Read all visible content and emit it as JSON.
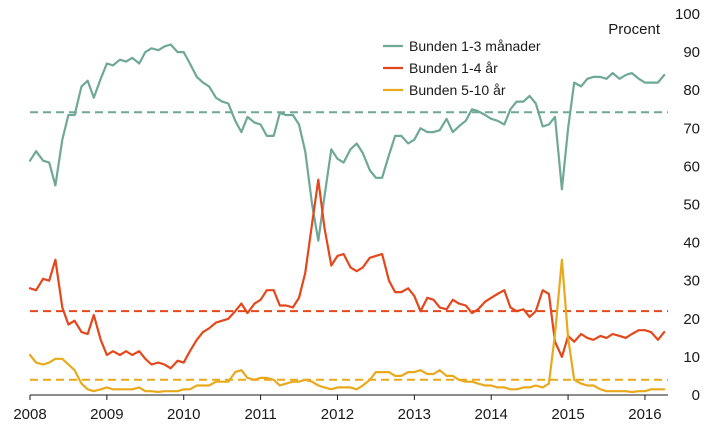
{
  "chart_data": {
    "type": "line",
    "title": "",
    "xlabel": "",
    "ylabel": "Procent",
    "xlim": [
      2008.0,
      2016.3
    ],
    "ylim": [
      0,
      100
    ],
    "x_ticks": [
      "2008",
      "2009",
      "2010",
      "2011",
      "2012",
      "2013",
      "2014",
      "2015",
      "2016"
    ],
    "y_ticks": [
      "0",
      "10",
      "20",
      "30",
      "40",
      "50",
      "60",
      "70",
      "80",
      "90",
      "100"
    ],
    "y_axis_position": "right",
    "grid": false,
    "legend_position": "top-center",
    "series": [
      {
        "name": "Bunden 1-3 månader",
        "color": "#6fa897",
        "mean": 74.2,
        "x": [
          2008.0,
          2008.08,
          2008.17,
          2008.25,
          2008.33,
          2008.42,
          2008.5,
          2008.58,
          2008.67,
          2008.75,
          2008.83,
          2008.92,
          2009.0,
          2009.08,
          2009.17,
          2009.25,
          2009.33,
          2009.42,
          2009.5,
          2009.58,
          2009.67,
          2009.75,
          2009.83,
          2009.92,
          2010.0,
          2010.08,
          2010.17,
          2010.25,
          2010.33,
          2010.42,
          2010.5,
          2010.58,
          2010.67,
          2010.75,
          2010.83,
          2010.92,
          2011.0,
          2011.08,
          2011.17,
          2011.25,
          2011.33,
          2011.42,
          2011.5,
          2011.58,
          2011.67,
          2011.75,
          2011.83,
          2011.92,
          2012.0,
          2012.08,
          2012.17,
          2012.25,
          2012.33,
          2012.42,
          2012.5,
          2012.58,
          2012.67,
          2012.75,
          2012.83,
          2012.92,
          2013.0,
          2013.08,
          2013.17,
          2013.25,
          2013.33,
          2013.42,
          2013.5,
          2013.58,
          2013.67,
          2013.75,
          2013.83,
          2013.92,
          2014.0,
          2014.08,
          2014.17,
          2014.25,
          2014.33,
          2014.42,
          2014.5,
          2014.58,
          2014.67,
          2014.75,
          2014.83,
          2014.92,
          2015.0,
          2015.08,
          2015.17,
          2015.25,
          2015.33,
          2015.42,
          2015.5,
          2015.58,
          2015.67,
          2015.75,
          2015.83,
          2015.92,
          2016.0,
          2016.08,
          2016.17,
          2016.25
        ],
        "values": [
          61.5,
          64.0,
          61.5,
          61.0,
          55.0,
          67.0,
          73.5,
          73.5,
          81.0,
          82.5,
          78.0,
          83.0,
          87.0,
          86.5,
          88.0,
          87.5,
          88.5,
          87.0,
          90.0,
          91.0,
          90.5,
          91.5,
          92.0,
          90.0,
          90.0,
          87.0,
          83.5,
          82.0,
          81.0,
          78.0,
          77.0,
          76.5,
          72.0,
          69.0,
          73.0,
          71.5,
          71.0,
          68.0,
          68.0,
          74.0,
          73.5,
          73.5,
          71.0,
          64.0,
          50.0,
          40.5,
          52.0,
          64.5,
          62.0,
          61.0,
          64.5,
          66.0,
          63.5,
          59.0,
          57.0,
          57.0,
          63.0,
          68.0,
          68.0,
          66.0,
          67.0,
          70.0,
          69.0,
          69.0,
          69.5,
          72.5,
          69.0,
          70.5,
          72.0,
          75.0,
          74.5,
          73.5,
          72.5,
          72.0,
          71.0,
          75.0,
          77.0,
          77.0,
          78.5,
          76.5,
          70.5,
          71.0,
          73.0,
          54.0,
          70.0,
          82.0,
          81.0,
          83.0,
          83.5,
          83.5,
          83.0,
          84.5,
          83.0,
          84.0,
          84.5,
          83.0,
          82.0,
          82.0,
          82.0,
          84.0
        ]
      },
      {
        "name": "Bunden 1-4 år",
        "color": "#e4471b",
        "mean": 22.0,
        "x": [
          2008.0,
          2008.08,
          2008.17,
          2008.25,
          2008.33,
          2008.42,
          2008.5,
          2008.58,
          2008.67,
          2008.75,
          2008.83,
          2008.92,
          2009.0,
          2009.08,
          2009.17,
          2009.25,
          2009.33,
          2009.42,
          2009.5,
          2009.58,
          2009.67,
          2009.75,
          2009.83,
          2009.92,
          2010.0,
          2010.08,
          2010.17,
          2010.25,
          2010.33,
          2010.42,
          2010.5,
          2010.58,
          2010.67,
          2010.75,
          2010.83,
          2010.92,
          2011.0,
          2011.08,
          2011.17,
          2011.25,
          2011.33,
          2011.42,
          2011.5,
          2011.58,
          2011.67,
          2011.75,
          2011.83,
          2011.92,
          2012.0,
          2012.08,
          2012.17,
          2012.25,
          2012.33,
          2012.42,
          2012.5,
          2012.58,
          2012.67,
          2012.75,
          2012.83,
          2012.92,
          2013.0,
          2013.08,
          2013.17,
          2013.25,
          2013.33,
          2013.42,
          2013.5,
          2013.58,
          2013.67,
          2013.75,
          2013.83,
          2013.92,
          2014.0,
          2014.08,
          2014.17,
          2014.25,
          2014.33,
          2014.42,
          2014.5,
          2014.58,
          2014.67,
          2014.75,
          2014.83,
          2014.92,
          2015.0,
          2015.08,
          2015.17,
          2015.25,
          2015.33,
          2015.42,
          2015.5,
          2015.58,
          2015.67,
          2015.75,
          2015.83,
          2015.92,
          2016.0,
          2016.08,
          2016.17,
          2016.25
        ],
        "values": [
          28.0,
          27.5,
          30.5,
          30.0,
          35.5,
          23.0,
          18.5,
          19.5,
          16.5,
          16.0,
          21.0,
          14.5,
          10.5,
          11.5,
          10.5,
          11.5,
          10.5,
          11.5,
          9.5,
          8.0,
          8.5,
          8.0,
          7.0,
          9.0,
          8.5,
          11.5,
          14.5,
          16.5,
          17.5,
          19.0,
          19.5,
          20.0,
          22.0,
          24.0,
          21.5,
          24.0,
          25.0,
          27.5,
          27.5,
          23.5,
          23.5,
          23.0,
          25.5,
          32.0,
          45.0,
          56.5,
          44.0,
          34.0,
          36.5,
          37.0,
          33.5,
          32.5,
          33.5,
          36.0,
          36.5,
          37.0,
          30.0,
          27.0,
          27.0,
          28.0,
          26.0,
          22.0,
          25.5,
          25.0,
          23.0,
          22.5,
          25.0,
          24.0,
          23.5,
          21.5,
          22.5,
          24.5,
          25.5,
          26.5,
          27.5,
          23.0,
          22.0,
          22.5,
          20.5,
          22.0,
          27.5,
          26.5,
          14.0,
          10.0,
          15.5,
          14.0,
          16.0,
          15.0,
          14.5,
          15.5,
          15.0,
          16.0,
          15.5,
          15.0,
          16.0,
          17.0,
          17.0,
          16.5,
          14.5,
          16.5
        ]
      },
      {
        "name": "Bunden 5-10 år",
        "color": "#e8a91c",
        "mean": 4.0,
        "x": [
          2008.0,
          2008.08,
          2008.17,
          2008.25,
          2008.33,
          2008.42,
          2008.5,
          2008.58,
          2008.67,
          2008.75,
          2008.83,
          2008.92,
          2009.0,
          2009.08,
          2009.17,
          2009.25,
          2009.33,
          2009.42,
          2009.5,
          2009.58,
          2009.67,
          2009.75,
          2009.83,
          2009.92,
          2010.0,
          2010.08,
          2010.17,
          2010.25,
          2010.33,
          2010.42,
          2010.5,
          2010.58,
          2010.67,
          2010.75,
          2010.83,
          2010.92,
          2011.0,
          2011.08,
          2011.17,
          2011.25,
          2011.33,
          2011.42,
          2011.5,
          2011.58,
          2011.67,
          2011.75,
          2011.83,
          2011.92,
          2012.0,
          2012.08,
          2012.17,
          2012.25,
          2012.33,
          2012.42,
          2012.5,
          2012.58,
          2012.67,
          2012.75,
          2012.83,
          2012.92,
          2013.0,
          2013.08,
          2013.17,
          2013.25,
          2013.33,
          2013.42,
          2013.5,
          2013.58,
          2013.67,
          2013.75,
          2013.83,
          2013.92,
          2014.0,
          2014.08,
          2014.17,
          2014.25,
          2014.33,
          2014.42,
          2014.5,
          2014.58,
          2014.67,
          2014.75,
          2014.83,
          2014.92,
          2015.0,
          2015.08,
          2015.17,
          2015.25,
          2015.33,
          2015.42,
          2015.5,
          2015.58,
          2015.67,
          2015.75,
          2015.83,
          2015.92,
          2016.0,
          2016.08,
          2016.17,
          2016.25
        ],
        "values": [
          10.5,
          8.5,
          8.0,
          8.5,
          9.5,
          9.5,
          8.0,
          6.5,
          3.0,
          1.5,
          1.0,
          1.5,
          2.0,
          1.5,
          1.5,
          1.5,
          1.5,
          2.0,
          1.0,
          1.0,
          0.8,
          1.0,
          1.0,
          1.0,
          1.5,
          1.5,
          2.5,
          2.5,
          2.5,
          3.5,
          3.5,
          3.5,
          6.0,
          6.5,
          4.5,
          4.0,
          4.5,
          4.5,
          4.0,
          2.5,
          3.0,
          3.5,
          3.5,
          4.0,
          3.5,
          2.5,
          2.0,
          1.5,
          2.0,
          2.0,
          2.0,
          1.5,
          2.5,
          4.0,
          6.0,
          6.0,
          6.0,
          5.0,
          5.0,
          6.0,
          6.0,
          6.5,
          5.5,
          5.5,
          6.5,
          5.0,
          5.0,
          4.0,
          3.5,
          3.5,
          3.0,
          2.5,
          2.5,
          2.0,
          2.0,
          1.5,
          1.5,
          2.0,
          2.0,
          2.5,
          2.0,
          3.0,
          16.0,
          35.5,
          15.0,
          4.0,
          3.0,
          2.5,
          2.5,
          1.5,
          1.0,
          1.0,
          1.0,
          1.0,
          0.8,
          1.0,
          1.0,
          1.5,
          1.5,
          1.5
        ]
      }
    ]
  }
}
